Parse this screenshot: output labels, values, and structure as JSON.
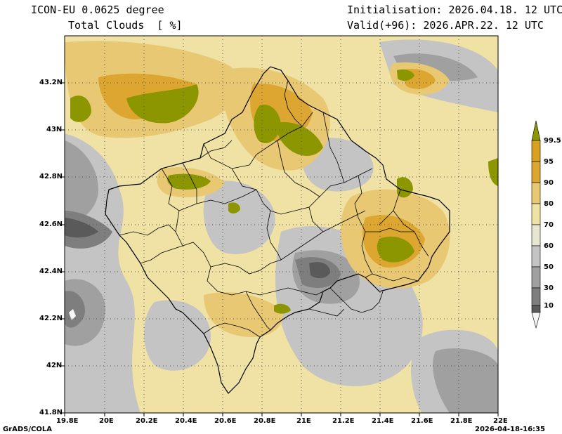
{
  "header": {
    "model": "ICON-EU 0.0625 degree",
    "variable": "Total Clouds  [ %]",
    "init": "Initialisation: 2026.04.18. 12 UTC",
    "valid": "Valid(+96): 2026.APR.22. 12 UTC"
  },
  "axes": {
    "y_ticks": [
      "43.2N",
      "43N",
      "42.8N",
      "42.6N",
      "42.4N",
      "42.2N",
      "42N",
      "41.8N"
    ],
    "x_ticks": [
      "19.8E",
      "20E",
      "20.2E",
      "20.4E",
      "20.6E",
      "20.8E",
      "21E",
      "21.2E",
      "21.4E",
      "21.6E",
      "21.8E",
      "22E"
    ],
    "lon_range": [
      19.8,
      22.0
    ],
    "lat_range": [
      41.8,
      43.4
    ],
    "grid": true
  },
  "colorbar": {
    "levels": [
      "99.5",
      "95",
      "90",
      "80",
      "70",
      "60",
      "50",
      "30",
      "10"
    ],
    "colors": [
      "#f5f5f5",
      "#5a5a5a",
      "#7e7e7e",
      "#a0a0a0",
      "#c4c4c4",
      "#e6e6d2",
      "#f0e2a4",
      "#e8c873",
      "#dca630",
      "#d8a220",
      "#8c9600"
    ]
  },
  "footer": {
    "left": "GrADS/COLA",
    "right": "2026-04-18-16:35"
  }
}
